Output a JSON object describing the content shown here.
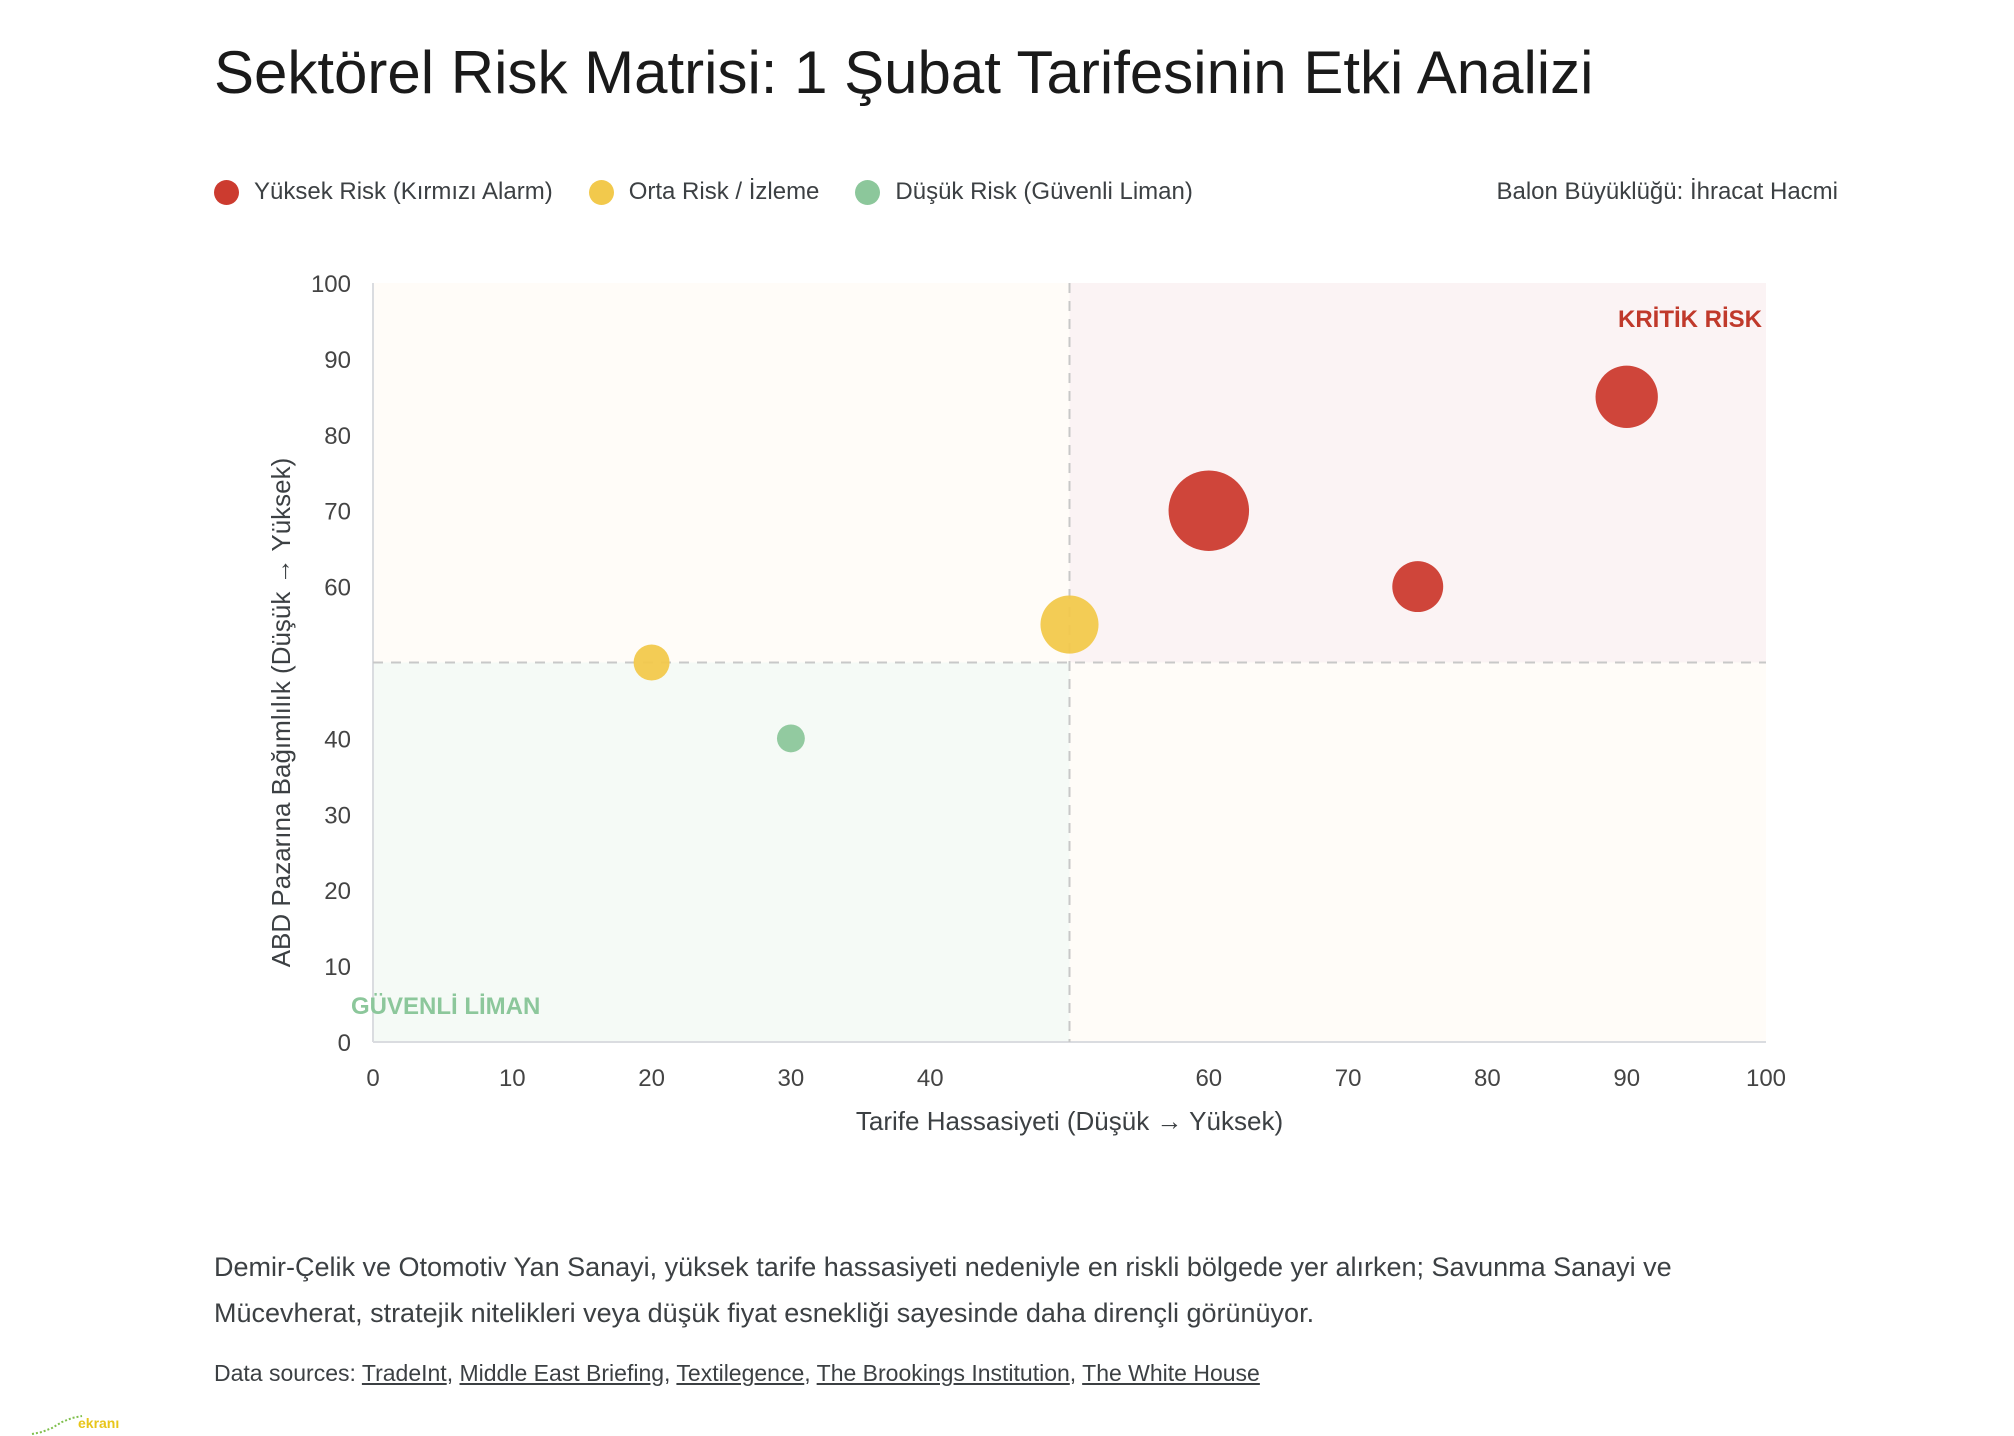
{
  "title": "Sektörel Risk Matrisi: 1 Şubat Tarifesinin Etki Analizi",
  "legend": {
    "items": [
      {
        "label": "Yüksek Risk (Kırmızı Alarm)",
        "color": "#cc3b2f"
      },
      {
        "label": "Orta Risk / İzleme",
        "color": "#f2c94c"
      },
      {
        "label": "Düşük Risk (Güvenli Liman)",
        "color": "#8cc79b"
      }
    ],
    "size_note": "Balon Büyüklüğü: İhracat Hacmi"
  },
  "chart_data": {
    "type": "scatter",
    "xlabel": "Tarife Hassasiyeti (Düşük → Yüksek)",
    "ylabel": "ABD Pazarına Bağımlılık (Düşük → Yüksek)",
    "xlim": [
      0,
      100
    ],
    "ylim": [
      0,
      100
    ],
    "x_ticks": [
      0,
      10,
      20,
      30,
      40,
      60,
      70,
      80,
      90,
      100
    ],
    "y_ticks": [
      0,
      10,
      20,
      30,
      40,
      60,
      70,
      80,
      90,
      100
    ],
    "divider_x": 50,
    "divider_y": 50,
    "zone_labels": {
      "critical": "KRİTİK RİSK",
      "safe": "GÜVENLİ LİMAN"
    },
    "zone_colors": {
      "critical": "#fbf3f4",
      "neutral": "#fffcf8",
      "safe": "#f5faf6"
    },
    "points": [
      {
        "x": 90,
        "y": 85,
        "size": 3.0,
        "risk": "high"
      },
      {
        "x": 60,
        "y": 70,
        "size": 5.0,
        "risk": "high"
      },
      {
        "x": 75,
        "y": 60,
        "size": 2.0,
        "risk": "high"
      },
      {
        "x": 50,
        "y": 55,
        "size": 2.6,
        "risk": "medium"
      },
      {
        "x": 20,
        "y": 50,
        "size": 1.0,
        "risk": "medium"
      },
      {
        "x": 30,
        "y": 40,
        "size": 0.6,
        "risk": "low"
      }
    ],
    "risk_colors": {
      "high": "#cc3b2f",
      "medium": "#f2c94c",
      "low": "#8cc79b"
    }
  },
  "summary": "Demir-Çelik ve Otomotiv Yan Sanayi, yüksek tarife hassasiyeti nedeniyle en riskli bölgede yer alırken; Savunma Sanayi ve Mücevherat, stratejik nitelikleri veya düşük fiyat esnekliği sayesinde daha dirençli görünüyor.",
  "sources": {
    "prefix": "Data sources:",
    "links": [
      "TradeInt",
      "Middle East Briefing",
      "Textilegence",
      "The Brookings Institution",
      "The White House"
    ]
  },
  "logo_text": "ekranı"
}
